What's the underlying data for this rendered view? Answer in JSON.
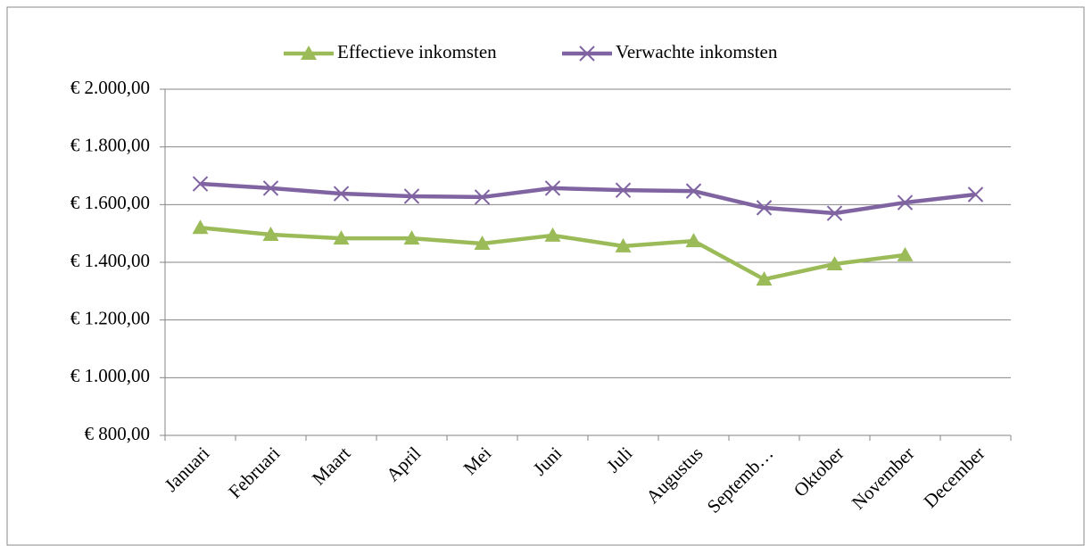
{
  "chart_data": {
    "type": "line",
    "categories": [
      "Januari",
      "Februari",
      "Maart",
      "April",
      "Mei",
      "Juni",
      "Juli",
      "Augustus",
      "Septemb…",
      "Oktober",
      "November",
      "December"
    ],
    "series": [
      {
        "name": "Effectieve inkomsten",
        "color": "#9bbb59",
        "marker": "triangle",
        "values": [
          1520,
          1496,
          1483,
          1483,
          1465,
          1493,
          1456,
          1474,
          1341,
          1394,
          1425,
          null
        ]
      },
      {
        "name": "Verwachte inkomsten",
        "color": "#8064a2",
        "marker": "x",
        "values": [
          1672,
          1657,
          1638,
          1629,
          1626,
          1657,
          1650,
          1647,
          1589,
          1570,
          1607,
          1635
        ]
      }
    ],
    "ylim": [
      800,
      2000
    ],
    "yticks": [
      {
        "value": 800,
        "label": "€ 800,00"
      },
      {
        "value": 1000,
        "label": "€ 1.000,00"
      },
      {
        "value": 1200,
        "label": "€ 1.200,00"
      },
      {
        "value": 1400,
        "label": "€ 1.400,00"
      },
      {
        "value": 1600,
        "label": "€ 1.600,00"
      },
      {
        "value": 1800,
        "label": "€ 1.800,00"
      },
      {
        "value": 2000,
        "label": "€ 2.000,00"
      }
    ],
    "grid": true,
    "legend": "top"
  }
}
